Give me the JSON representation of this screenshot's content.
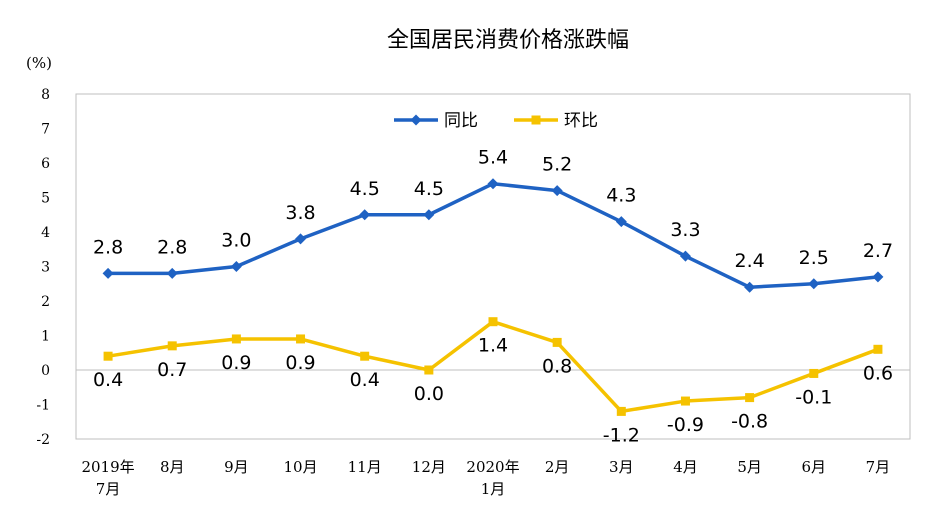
{
  "chart_data": {
    "type": "line",
    "title": "全国居民消费价格涨跌幅",
    "unit_label": "(%)",
    "ylim": [
      -2,
      8
    ],
    "yticks": [
      "8",
      "7",
      "6",
      "5",
      "4",
      "3",
      "2",
      "1",
      "0",
      "-1",
      "-2"
    ],
    "grid": false,
    "legend_placement": "top-center",
    "categories": [
      [
        "2019年",
        "7月"
      ],
      [
        "8月"
      ],
      [
        "9月"
      ],
      [
        "10月"
      ],
      [
        "11月"
      ],
      [
        "12月"
      ],
      [
        "2020年",
        "1月"
      ],
      [
        "2月"
      ],
      [
        "3月"
      ],
      [
        "4月"
      ],
      [
        "5月"
      ],
      [
        "6月"
      ],
      [
        "7月"
      ]
    ],
    "series": [
      {
        "name": "同比",
        "color": "#1f62c3",
        "marker": "diamond",
        "values": [
          2.8,
          2.8,
          3.0,
          3.8,
          4.5,
          4.5,
          5.4,
          5.2,
          4.3,
          3.3,
          2.4,
          2.5,
          2.7
        ],
        "labels": [
          "2.8",
          "2.8",
          "3.0",
          "3.8",
          "4.5",
          "4.5",
          "5.4",
          "5.2",
          "4.3",
          "3.3",
          "2.4",
          "2.5",
          "2.7"
        ]
      },
      {
        "name": "环比",
        "color": "#f5c200",
        "marker": "square",
        "values": [
          0.4,
          0.7,
          0.9,
          0.9,
          0.4,
          0.0,
          1.4,
          0.8,
          -1.2,
          -0.9,
          -0.8,
          -0.1,
          0.6
        ],
        "labels": [
          "0.4",
          "0.7",
          "0.9",
          "0.9",
          "0.4",
          "0.0",
          "1.4",
          "0.8",
          "-1.2",
          "-0.9",
          "-0.8",
          "-0.1",
          "0.6"
        ]
      }
    ]
  }
}
